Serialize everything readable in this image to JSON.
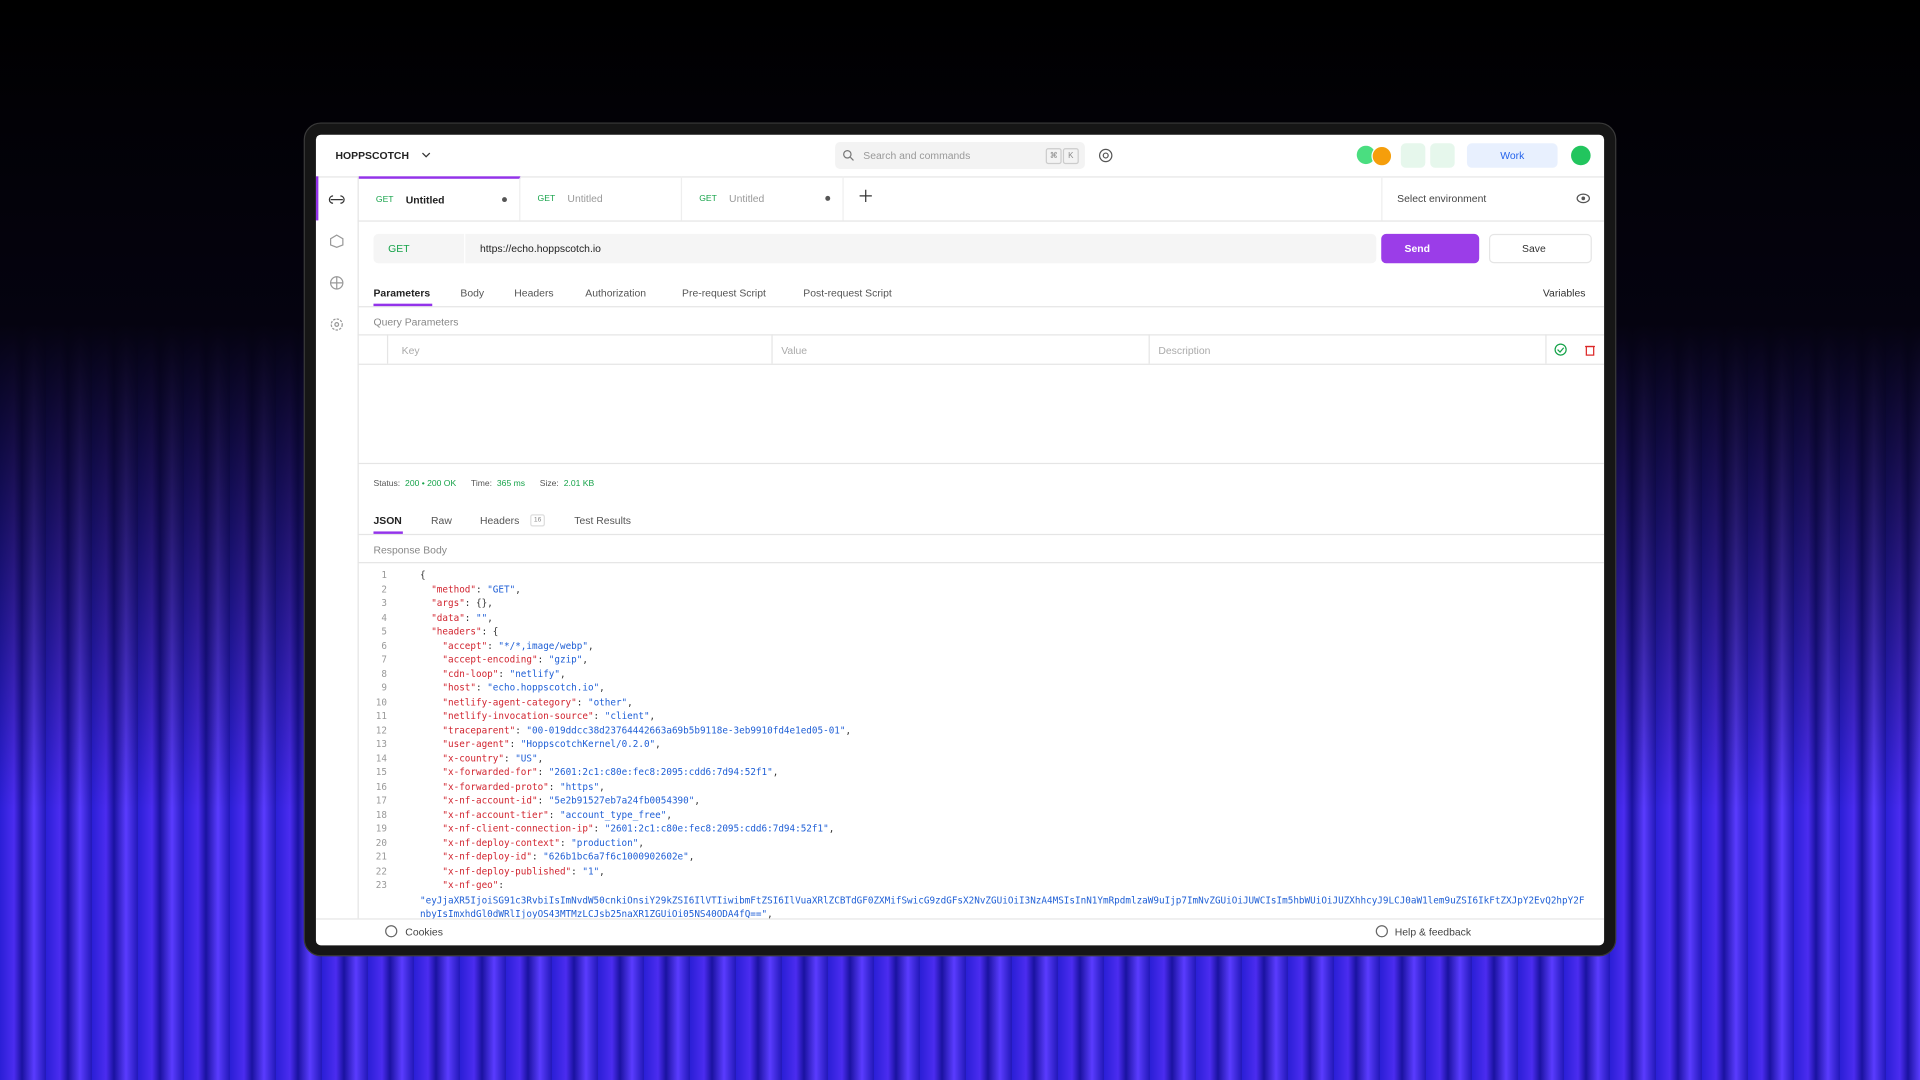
{
  "header": {
    "brand": "HOPPSCOTCH",
    "search": "Search and commands",
    "keys": [
      "⌘",
      "K"
    ],
    "workspace": "Work"
  },
  "tabs": [
    {
      "method": "GET",
      "title": "Untitled"
    },
    {
      "method": "GET",
      "title": "Untitled"
    },
    {
      "method": "GET",
      "title": "Untitled"
    }
  ],
  "environment": "Select environment",
  "request": {
    "method": "GET",
    "url": "https://echo.hoppscotch.io",
    "send": "Send",
    "save": "Save"
  },
  "request_tabs": [
    "Parameters",
    "Body",
    "Headers",
    "Authorization",
    "Pre-request Script",
    "Post-request Script"
  ],
  "variables": "Variables",
  "query": {
    "title": "Query Parameters",
    "columns": [
      "Key",
      "Value",
      "Description"
    ]
  },
  "status": {
    "status_label": "Status:",
    "status": "200 • 200 OK",
    "time_label": "Time:",
    "time": "365 ms",
    "size_label": "Size:",
    "size": "2.01 KB"
  },
  "response_tabs": [
    "JSON",
    "Raw",
    "Headers",
    "Test Results"
  ],
  "headers_count": "16",
  "response_body": "Response Body",
  "code": [
    {
      "n": "1",
      "e": "{"
    },
    {
      "n": "2",
      "k": "  \"method\"",
      "s": ": ",
      "v": "\"GET\"",
      "e": ","
    },
    {
      "n": "3",
      "k": "  \"args\"",
      "s": ": ",
      "e": "{},"
    },
    {
      "n": "4",
      "k": "  \"data\"",
      "s": ": ",
      "v": "\"\"",
      "e": ","
    },
    {
      "n": "5",
      "k": "  \"headers\"",
      "s": ": ",
      "e": "{"
    },
    {
      "n": "6",
      "k": "    \"accept\"",
      "s": ": ",
      "v": "\"*/*,image/webp\"",
      "e": ","
    },
    {
      "n": "7",
      "k": "    \"accept-encoding\"",
      "s": ": ",
      "v": "\"gzip\"",
      "e": ","
    },
    {
      "n": "8",
      "k": "    \"cdn-loop\"",
      "s": ": ",
      "v": "\"netlify\"",
      "e": ","
    },
    {
      "n": "9",
      "k": "    \"host\"",
      "s": ": ",
      "v": "\"echo.hoppscotch.io\"",
      "e": ","
    },
    {
      "n": "10",
      "k": "    \"netlify-agent-category\"",
      "s": ": ",
      "v": "\"other\"",
      "e": ","
    },
    {
      "n": "11",
      "k": "    \"netlify-invocation-source\"",
      "s": ": ",
      "v": "\"client\"",
      "e": ","
    },
    {
      "n": "12",
      "k": "    \"traceparent\"",
      "s": ": ",
      "v": "\"00-019ddcc38d23764442663a69b5b9118e-3eb9910fd4e1ed05-01\"",
      "e": ","
    },
    {
      "n": "13",
      "k": "    \"user-agent\"",
      "s": ": ",
      "v": "\"HoppscotchKernel/0.2.0\"",
      "e": ","
    },
    {
      "n": "14",
      "k": "    \"x-country\"",
      "s": ": ",
      "v": "\"US\"",
      "e": ","
    },
    {
      "n": "15",
      "k": "    \"x-forwarded-for\"",
      "s": ": ",
      "v": "\"2601:2c1:c80e:fec8:2095:cdd6:7d94:52f1\"",
      "e": ","
    },
    {
      "n": "16",
      "k": "    \"x-forwarded-proto\"",
      "s": ": ",
      "v": "\"https\"",
      "e": ","
    },
    {
      "n": "17",
      "k": "    \"x-nf-account-id\"",
      "s": ": ",
      "v": "\"5e2b91527eb7a24fb0054390\"",
      "e": ","
    },
    {
      "n": "18",
      "k": "    \"x-nf-account-tier\"",
      "s": ": ",
      "v": "\"account_type_free\"",
      "e": ","
    },
    {
      "n": "19",
      "k": "    \"x-nf-client-connection-ip\"",
      "s": ": ",
      "v": "\"2601:2c1:c80e:fec8:2095:cdd6:7d94:52f1\"",
      "e": ","
    },
    {
      "n": "20",
      "k": "    \"x-nf-deploy-context\"",
      "s": ": ",
      "v": "\"production\"",
      "e": ","
    },
    {
      "n": "21",
      "k": "    \"x-nf-deploy-id\"",
      "s": ": ",
      "v": "\"626b1bc6a7f6c1000902602e\"",
      "e": ","
    },
    {
      "n": "22",
      "k": "    \"x-nf-deploy-published\"",
      "s": ": ",
      "v": "\"1\"",
      "e": ","
    },
    {
      "n": "23",
      "k": "    \"x-nf-geo\"",
      "s": ":"
    },
    {
      "n": null,
      "v": "\"eyJjaXR5IjoiSG91c3RvbiIsImNvdW50cnkiOnsiY29kZSI6IlVTIiwibmFtZSI6IlVuaXRlZCBTdGF0ZXMifSwicG9zdGFsX2NvZGUiOiI3NzA4MSIsInN1YmRpdmlzaW9uIjp7ImNvZGUiOiJUWCIsIm5hbWUiOiJUZXhhcyJ9LCJ0aW1lem9uZSI6IkFtZXJpY2EvQ2hpY2FnbyIsImxhdGl0dWRlIjoyOS43MTMzLCJsb25naXR1ZGUiOi05NS40ODA4fQ==\"",
      "e": ","
    }
  ],
  "footer": {
    "cookies": "Cookies",
    "help": "Help & feedback"
  }
}
